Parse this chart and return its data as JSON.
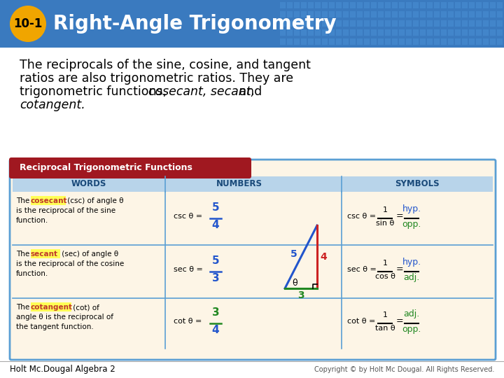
{
  "header_bg": "#3a7abf",
  "header_tile_color": "#4a8fd4",
  "badge_color": "#f0a500",
  "badge_text": "10-1",
  "title_text": "Right-Angle Trigonometry",
  "title_color": "#ffffff",
  "body_bg": "#dce8f5",
  "intro_bg": "#ffffff",
  "table_border": "#5a9fd4",
  "table_header_bg": "#b8d4ea",
  "table_title_bg": "#a01820",
  "table_title_text": "Reciprocal Trigonometric Functions",
  "table_body_bg": "#fdf5e6",
  "col_header_color": "#1a4a7a",
  "words_col_header": "WORDS",
  "numbers_col_header": "NUMBERS",
  "symbols_col_header": "SYMBOLS",
  "yellow_highlight": "#ffff55",
  "dark_red": "#c0392b",
  "blue_text": "#2255cc",
  "green_text": "#228822",
  "black_text": "#111111",
  "footer_left": "Holt Mc.Dougal Algebra 2",
  "footer_right": "Copyright © by Holt Mc Dougal. All Rights Reserved.",
  "footer_bg": "#ffffff",
  "trig_hyp_color": "#2255cc",
  "trig_vert_color": "#cc2222",
  "trig_horiz_color": "#228822"
}
